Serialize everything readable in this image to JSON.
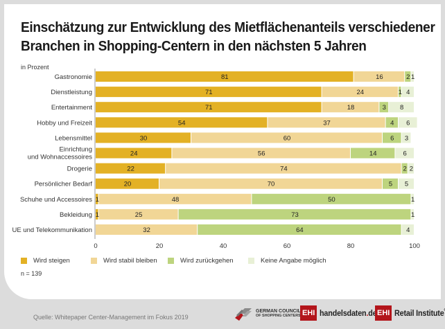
{
  "title_line1": "Einschätzung zur Entwicklung des Mietflächenanteils verschiedener",
  "title_line2": "Branchen in Shopping-Centern in den nächsten 5 Jahren",
  "unit_label": "in Prozent",
  "sample_size": "n = 139",
  "source": "Quelle: Whitepaper Center-Management im Fokus 2019",
  "logos": {
    "gcsc_line1": "GERMAN COUNCIL",
    "gcsc_line2": "OF SHOPPING CENTERS",
    "ehi_box": "EHI",
    "handelsdaten_a": "handelsdaten",
    "handelsdaten_dot": ".",
    "handelsdaten_b": "de",
    "retail": "Retail Institute",
    "reg": "®"
  },
  "colors": {
    "steigen": "#e3b125",
    "stabil": "#f1d696",
    "zurueck": "#bdd47e",
    "keine": "#e8f0d6"
  },
  "chart_data": {
    "type": "bar",
    "orientation": "horizontal",
    "stacked": true,
    "title": "Einschätzung zur Entwicklung des Mietflächenanteils verschiedener Branchen in Shopping-Centern in den nächsten 5 Jahren",
    "xlabel": "",
    "ylabel": "in Prozent",
    "xlim": [
      0,
      100
    ],
    "xticks": [
      0,
      20,
      40,
      60,
      80,
      100
    ],
    "grid": false,
    "legend_position": "bottom-left",
    "categories": [
      [
        "Gastronomie"
      ],
      [
        "Dienstleistung"
      ],
      [
        "Entertainment"
      ],
      [
        "Hobby und Freizeit"
      ],
      [
        "Lebensmittel"
      ],
      [
        "Einrichtung",
        "und Wohnaccessoires"
      ],
      [
        "Drogerie"
      ],
      [
        "Persönlicher Bedarf"
      ],
      [
        "Schuhe und Accessoires"
      ],
      [
        "Bekleidung"
      ],
      [
        "UE und Telekommunikation"
      ]
    ],
    "series": [
      {
        "name": "Wird steigen",
        "color": "#e3b125",
        "values": [
          81,
          71,
          71,
          54,
          30,
          24,
          22,
          20,
          1,
          1,
          0
        ]
      },
      {
        "name": "Wird stabil bleiben",
        "color": "#f1d696",
        "values": [
          16,
          24,
          18,
          37,
          60,
          56,
          74,
          70,
          48,
          25,
          32
        ]
      },
      {
        "name": "Wird zurückgehen",
        "color": "#bdd47e",
        "values": [
          2,
          1,
          3,
          4,
          6,
          14,
          2,
          5,
          50,
          73,
          64
        ]
      },
      {
        "name": "Keine Angabe möglich",
        "color": "#e8f0d6",
        "values": [
          1,
          4,
          8,
          6,
          3,
          6,
          2,
          5,
          1,
          1,
          4
        ]
      }
    ]
  }
}
